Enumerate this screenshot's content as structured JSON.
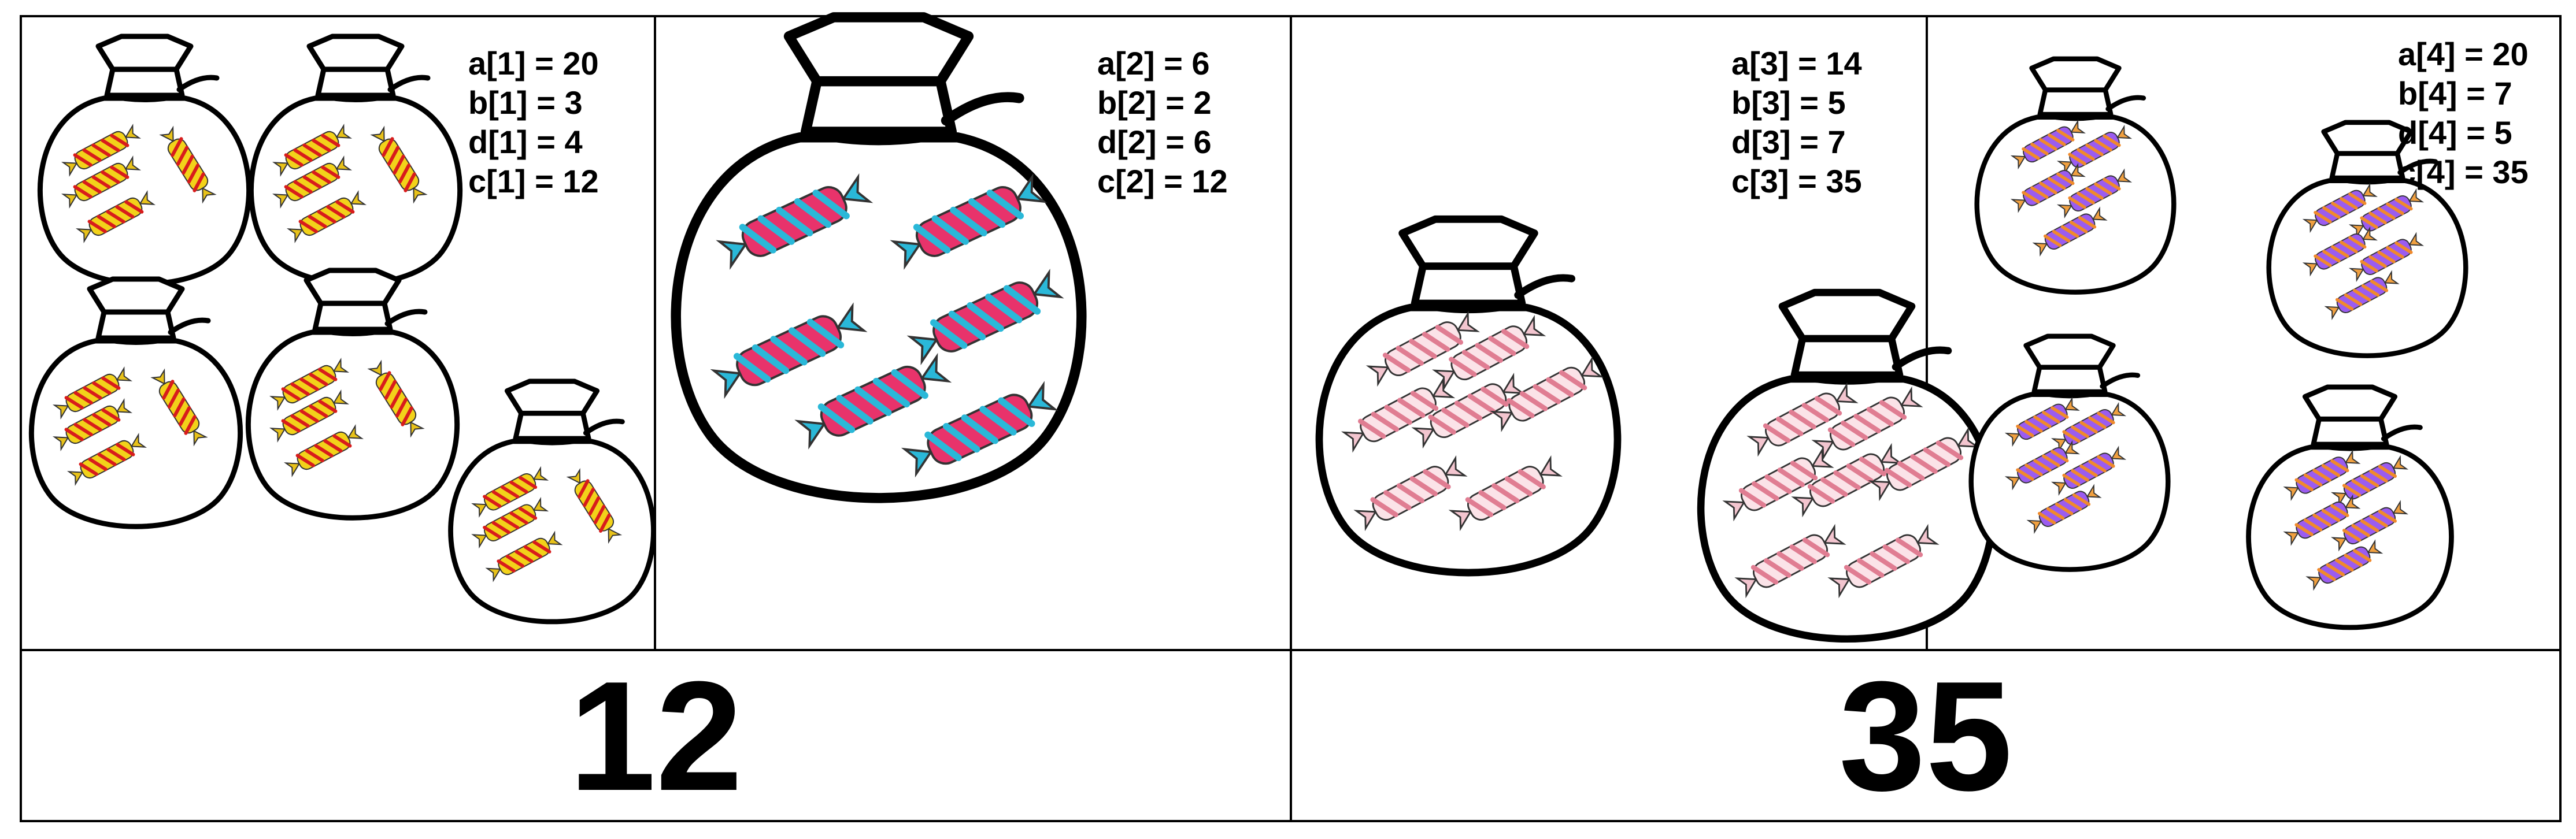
{
  "panels": [
    {
      "labels": [
        "a[1] = 20",
        "b[1] = 3",
        "d[1] = 4",
        "c[1] = 12"
      ],
      "bag_count": 5,
      "candies_per_bag": 4,
      "candy_colors": {
        "body": "#f2d21a",
        "stripe": "#d81c1c",
        "wrap": "#e8c21a"
      }
    },
    {
      "labels": [
        "a[2] = 6",
        "b[2] = 2",
        "d[2] = 6",
        "c[2] = 12"
      ],
      "bag_count": 1,
      "candies_per_bag": 6,
      "candy_colors": {
        "body": "#e8336b",
        "stripe": "#2ab8d8",
        "wrap": "#2ab8d8"
      }
    },
    {
      "labels": [
        "a[3] = 14",
        "b[3] = 5",
        "d[3] = 7",
        "c[3] = 35"
      ],
      "bag_count": 2,
      "candies_per_bag": 7,
      "candy_colors": {
        "body": "#fbe3e8",
        "stripe": "#e07d92",
        "wrap": "#f3c5cf"
      }
    },
    {
      "labels": [
        "a[4] = 20",
        "b[4] = 7",
        "d[4] = 5",
        "c[4] = 35"
      ],
      "bag_count": 4,
      "candies_per_bag": 5,
      "candy_colors": {
        "body": "#9b5cf0",
        "stripe": "#f08a2c",
        "wrap": "#f0a040"
      }
    }
  ],
  "answers": [
    "12",
    "35"
  ]
}
